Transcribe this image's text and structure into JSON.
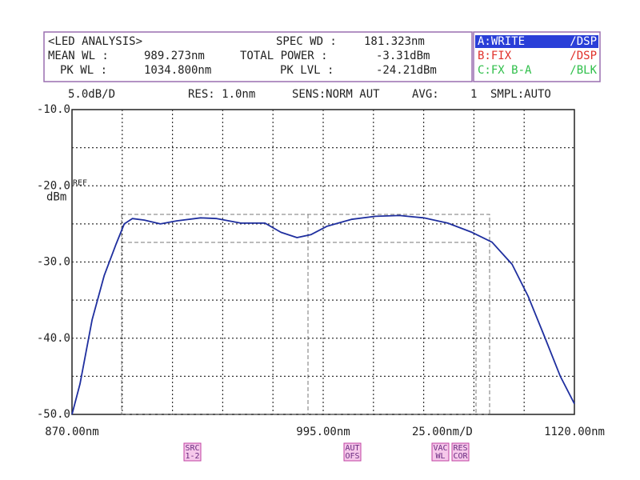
{
  "analysis": {
    "title": "<LED ANALYSIS>",
    "fields": [
      {
        "label": "SPEC WD :",
        "value": "181.323nm"
      },
      {
        "label": "MEAN WL :",
        "value": "989.273nm"
      },
      {
        "label": "TOTAL POWER :",
        "value": "-3.31dBm"
      },
      {
        "label": "PK WL :",
        "value": "1034.800nm"
      },
      {
        "label": "PK LVL :",
        "value": "-24.21dBm"
      }
    ]
  },
  "traces": [
    {
      "label": "A:WRITE",
      "mode": "/DSP",
      "color": "#ffffff",
      "background": "#2a3fd8"
    },
    {
      "label": "B:FIX",
      "mode": "/DSP",
      "color": "#e0302a",
      "background": "#ffffff"
    },
    {
      "label": "C:FX B-A",
      "mode": "/BLK",
      "color": "#2fbf4a",
      "background": "#ffffff"
    }
  ],
  "status": [
    "5.0dB/D",
    "RES: 1.0nm",
    "SENS:NORM AUT",
    "AVG:",
    "1",
    "SMPL:AUTO"
  ],
  "softkeys": [
    [
      "SRC",
      "1-2"
    ],
    [
      "AUT",
      "OFS"
    ],
    [
      "VAC",
      "WL"
    ],
    [
      "RES",
      "COR"
    ]
  ],
  "chart_data": {
    "type": "line",
    "y_label": "dBm",
    "ref_label": "REF",
    "x_div_label": "25.00nm/D",
    "color": "#1f2f9f",
    "x": [
      870,
      874,
      880,
      886,
      892,
      896,
      900,
      906,
      914,
      922,
      934,
      942,
      954,
      966,
      974,
      982,
      989,
      997,
      1009,
      1021,
      1033,
      1045,
      1057,
      1069,
      1079,
      1089,
      1097,
      1105,
      1113,
      1120
    ],
    "values": [
      -50,
      -46.0,
      -37.6,
      -31.8,
      -27.6,
      -25.0,
      -24.3,
      -24.5,
      -25.0,
      -24.6,
      -24.2,
      -24.3,
      -24.9,
      -24.9,
      -26.1,
      -26.8,
      -26.4,
      -25.3,
      -24.4,
      -24.0,
      -23.9,
      -24.2,
      -24.9,
      -26.1,
      -27.4,
      -30.3,
      -34.5,
      -39.7,
      -45.0,
      -48.6
    ],
    "xlim": [
      870,
      1120
    ],
    "ylim": [
      -50,
      -10
    ],
    "xticks": [
      {
        "value": 870,
        "label": "870.00nm"
      },
      {
        "value": 995,
        "label": "995.00nm"
      },
      {
        "value": 1120,
        "label": "1120.00nm"
      }
    ],
    "yticks": [
      {
        "value": -10,
        "label": "-10.0"
      },
      {
        "value": -20,
        "label": "-20.0"
      },
      {
        "value": -30,
        "label": "-30.0"
      },
      {
        "value": -40,
        "label": "-40.0"
      },
      {
        "value": -50,
        "label": "-50.0"
      }
    ],
    "xgrid": [
      895,
      920,
      945,
      970,
      995,
      1020,
      1045,
      1070,
      1095
    ],
    "ygrid": [
      -15,
      -20,
      -25,
      -30,
      -35,
      -40,
      -45
    ],
    "grid": true
  }
}
